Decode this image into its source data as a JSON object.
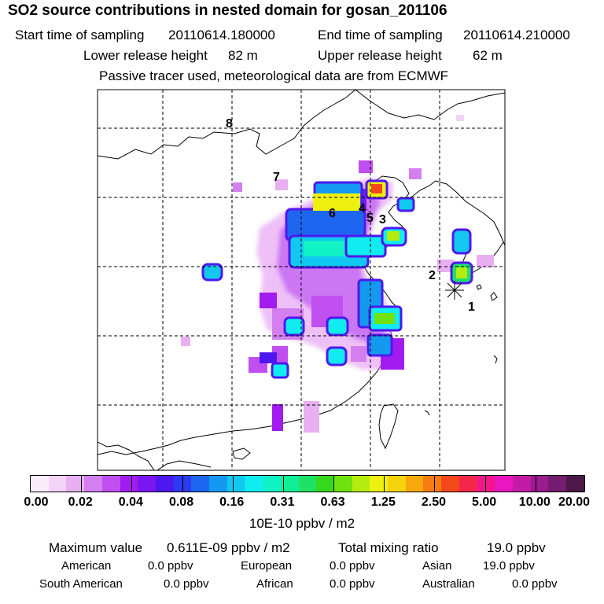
{
  "title": "SO2 source contributions in nested domain for gosan_201106",
  "sampling": {
    "start_label": "Start time of sampling",
    "start_value": "20110614.180000",
    "end_label": "End time of sampling",
    "end_value": "20110614.210000"
  },
  "release": {
    "lower_label": "Lower release height",
    "lower_value": "82 m",
    "upper_label": "Upper release height",
    "upper_value": "62 m"
  },
  "note": "Passive tracer used, meteorological data are from ECMWF",
  "map_labels": [
    "1",
    "2",
    "3",
    "4",
    "5",
    "6",
    "7",
    "8"
  ],
  "colorbar": {
    "colors": [
      "#fbeefb",
      "#f3d3f6",
      "#e8b0f1",
      "#d37ff0",
      "#c04ff0",
      "#a21cf0",
      "#7a17f0",
      "#4d18ef",
      "#2e3af0",
      "#1e66f0",
      "#1599f0",
      "#10c8f0",
      "#10ecef",
      "#11f2c6",
      "#10ee98",
      "#1ee266",
      "#35d81d",
      "#6fe20f",
      "#b4ec10",
      "#eef010",
      "#f6d40d",
      "#f6a80d",
      "#f57b12",
      "#f4481a",
      "#f2274a",
      "#f2178c",
      "#ea16bf",
      "#c21ca7",
      "#9a1c8e",
      "#741c6f",
      "#4b1848"
    ],
    "ticks": [
      "0.00",
      "0.02",
      "0.04",
      "0.08",
      "0.16",
      "0.31",
      "0.63",
      "1.25",
      "2.50",
      "5.00",
      "10.00",
      "20.00"
    ],
    "units": "10E-10 ppbv / m2"
  },
  "summary": {
    "max_label": "Maximum value",
    "max_value": "0.611E-09 ppbv / m2",
    "total_label": "Total mixing ratio",
    "total_value": "19.0 ppbv",
    "american_label": "American",
    "american_value": "0.0 ppbv",
    "european_label": "European",
    "european_value": "0.0 ppbv",
    "asian_label": "Asian",
    "asian_value": "19.0 ppbv",
    "south_american_label": "South American",
    "south_american_value": "0.0 ppbv",
    "african_label": "African",
    "african_value": "0.0 ppbv",
    "australian_label": "Australian",
    "australian_value": "0.0 ppbv"
  }
}
